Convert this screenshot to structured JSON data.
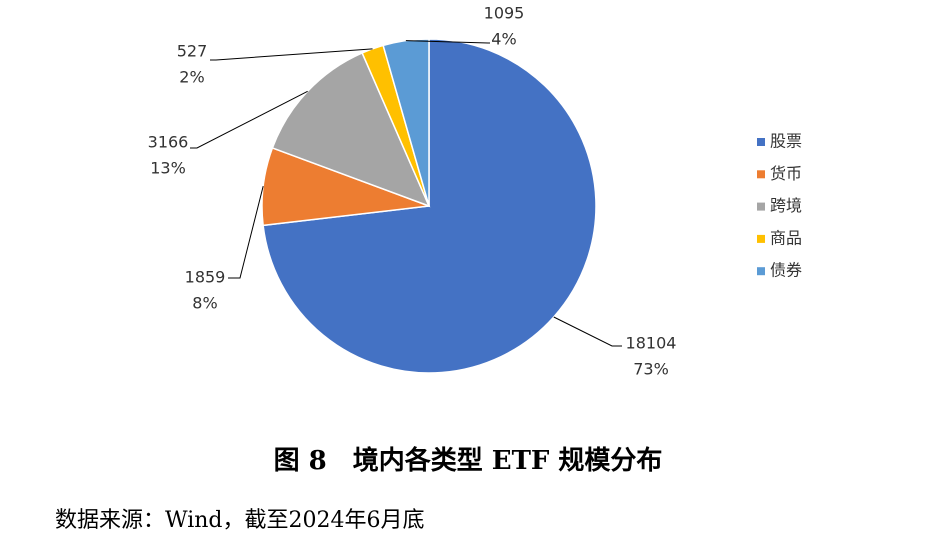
{
  "chart_data": {
    "type": "pie",
    "title": "图 8　境内各类型 ETF 规模分布",
    "source": "数据来源：Wind，截至2024年6月底",
    "categories": [
      "股票",
      "货币",
      "跨境",
      "商品",
      "债券"
    ],
    "values": [
      18104,
      1859,
      3166,
      527,
      1095
    ],
    "percent_labels": [
      "73%",
      "8%",
      "13%",
      "2%",
      "4%"
    ],
    "colors": [
      "#4472c4",
      "#ed7d31",
      "#a5a5a5",
      "#ffc000",
      "#5b9bd5"
    ],
    "legend": "right"
  }
}
